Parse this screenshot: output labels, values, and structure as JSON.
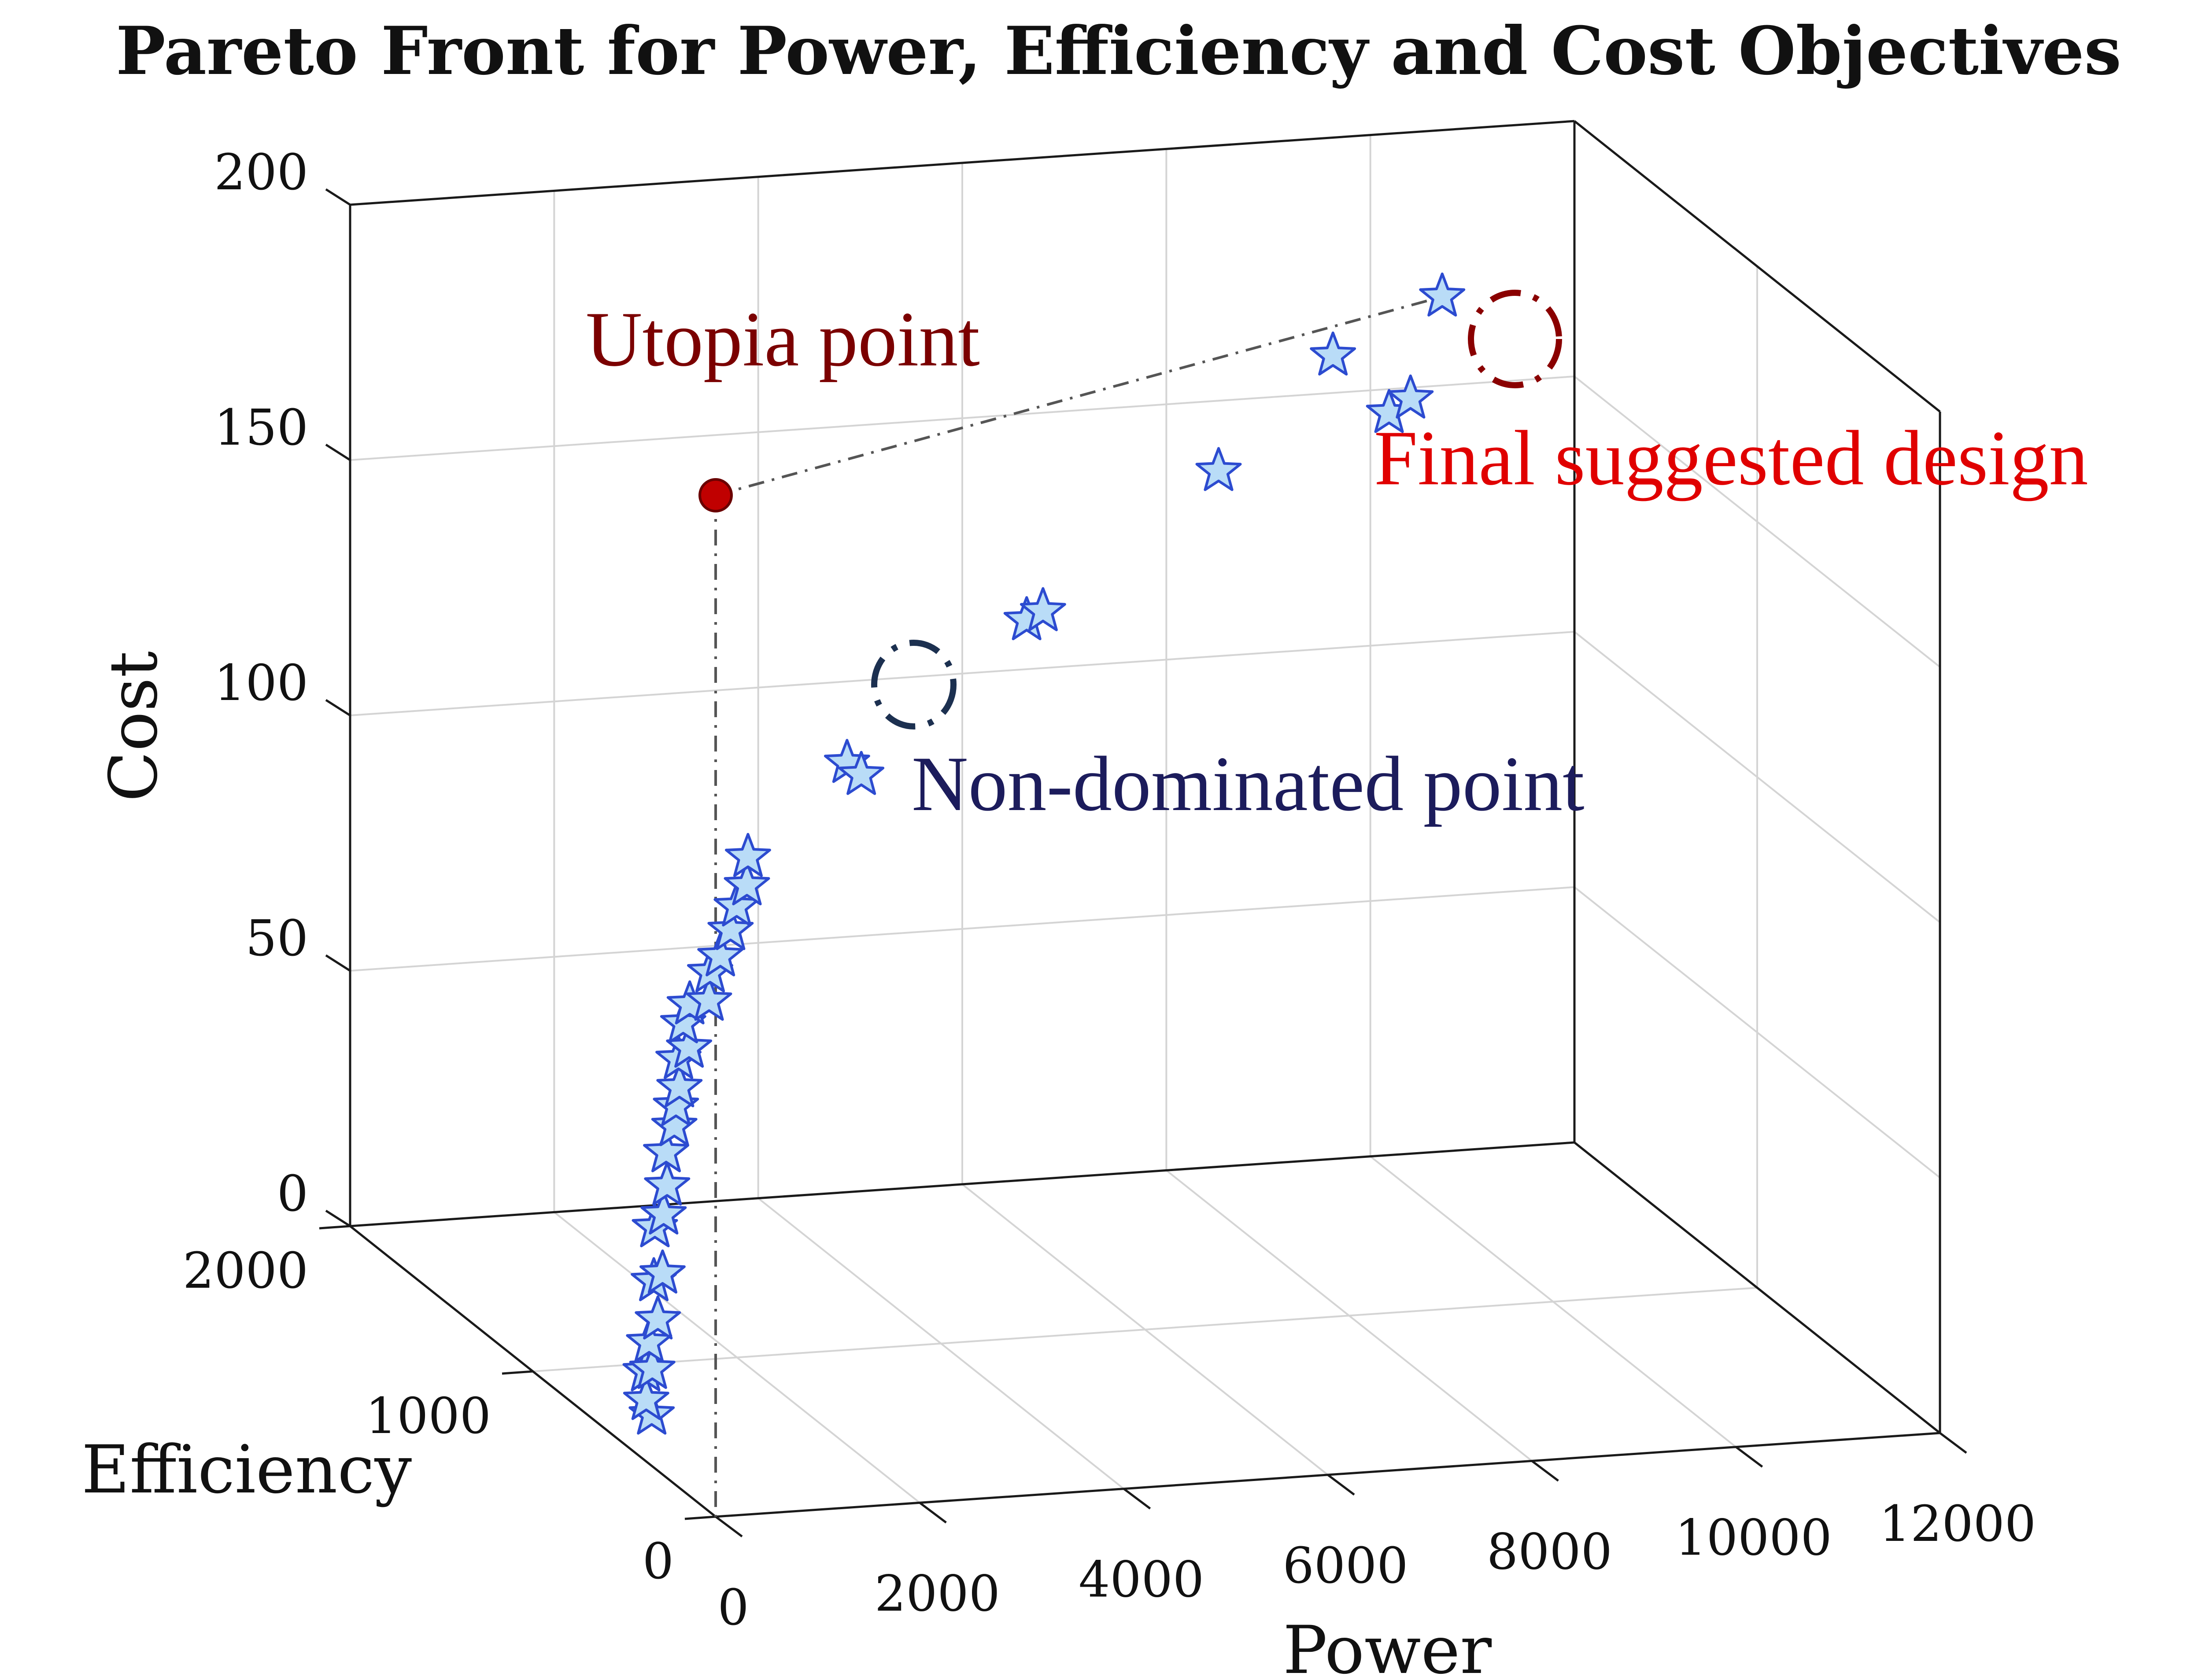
{
  "chart_data": {
    "type": "scatter",
    "title": "Pareto Front for Power, Efficiency and Cost Objectives",
    "xlabel": "Power",
    "ylabel": "Efficiency",
    "zlabel": "Cost",
    "xlim": [
      0,
      12000
    ],
    "ylim": [
      0,
      2000
    ],
    "zlim": [
      0,
      200
    ],
    "xticks": [
      "0",
      "2000",
      "4000",
      "6000",
      "8000",
      "10000",
      "12000"
    ],
    "yticks": [
      "0",
      "1000",
      "2000"
    ],
    "zticks": [
      "0",
      "50",
      "100",
      "150",
      "200"
    ],
    "grid": true,
    "series": [
      {
        "marker": "star",
        "color": "#b9dcf7",
        "points": [
          {
            "power": 0,
            "efficiency": 350,
            "cost": 10
          },
          {
            "power": 0,
            "efficiency": 380,
            "cost": 12
          },
          {
            "power": 30,
            "efficiency": 400,
            "cost": 17
          },
          {
            "power": 60,
            "efficiency": 380,
            "cost": 18
          },
          {
            "power": 100,
            "efficiency": 420,
            "cost": 22
          },
          {
            "power": 150,
            "efficiency": 400,
            "cost": 27
          },
          {
            "power": 200,
            "efficiency": 450,
            "cost": 33
          },
          {
            "power": 250,
            "efficiency": 430,
            "cost": 35
          },
          {
            "power": 300,
            "efficiency": 500,
            "cost": 42
          },
          {
            "power": 350,
            "efficiency": 480,
            "cost": 45
          },
          {
            "power": 420,
            "efficiency": 500,
            "cost": 50
          },
          {
            "power": 500,
            "efficiency": 550,
            "cost": 55
          },
          {
            "power": 580,
            "efficiency": 550,
            "cost": 60
          },
          {
            "power": 650,
            "efficiency": 580,
            "cost": 63
          },
          {
            "power": 720,
            "efficiency": 600,
            "cost": 66
          },
          {
            "power": 800,
            "efficiency": 650,
            "cost": 70
          },
          {
            "power": 850,
            "efficiency": 620,
            "cost": 73
          },
          {
            "power": 900,
            "efficiency": 680,
            "cost": 76
          },
          {
            "power": 1000,
            "efficiency": 700,
            "cost": 79
          },
          {
            "power": 1100,
            "efficiency": 650,
            "cost": 81
          },
          {
            "power": 1200,
            "efficiency": 700,
            "cost": 85
          },
          {
            "power": 1300,
            "efficiency": 700,
            "cost": 88
          },
          {
            "power": 1400,
            "efficiency": 700,
            "cost": 93
          },
          {
            "power": 1550,
            "efficiency": 750,
            "cost": 96
          },
          {
            "power": 1650,
            "efficiency": 750,
            "cost": 100
          },
          {
            "power": 1750,
            "efficiency": 800,
            "cost": 104
          },
          {
            "power": 2900,
            "efficiency": 900,
            "cost": 118
          },
          {
            "power": 2950,
            "efficiency": 850,
            "cost": 117
          },
          {
            "power": 4750,
            "efficiency": 950,
            "cost": 142
          },
          {
            "power": 5000,
            "efficiency": 1000,
            "cost": 142
          },
          {
            "power": 6900,
            "efficiency": 1100,
            "cost": 164
          },
          {
            "power": 8200,
            "efficiency": 1200,
            "cost": 182
          },
          {
            "power": 8750,
            "efficiency": 1200,
            "cost": 170
          },
          {
            "power": 9050,
            "efficiency": 1250,
            "cost": 171
          },
          {
            "power": 9450,
            "efficiency": 1300,
            "cost": 189
          }
        ]
      }
    ],
    "utopia_point": {
      "power": 0,
      "efficiency": 0,
      "cost": 200
    },
    "annotations": [
      {
        "text": "Utopia point",
        "color": "#7b0000"
      },
      {
        "text": "Final suggested design",
        "color": "#e00000"
      },
      {
        "text": "Non-dominated point",
        "color": "#1c1c5c"
      }
    ]
  }
}
